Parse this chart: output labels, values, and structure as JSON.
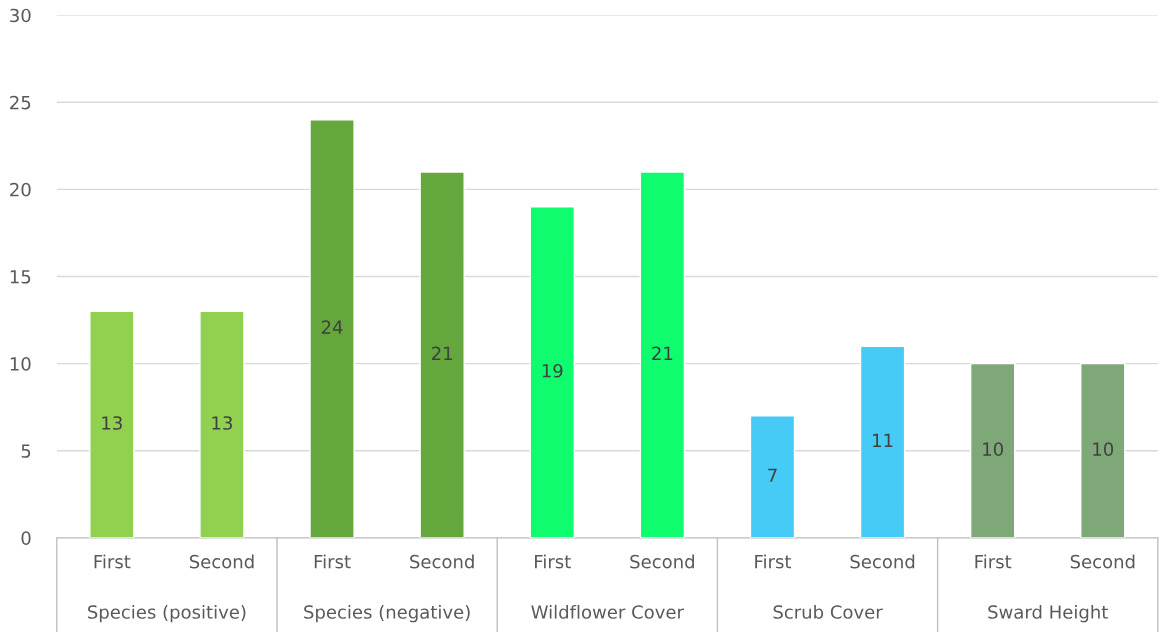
{
  "chart_data": {
    "type": "bar",
    "categories": [
      "First",
      "Second",
      "First",
      "Second",
      "First",
      "Second",
      "First",
      "Second",
      "First",
      "Second"
    ],
    "values": [
      13,
      13,
      24,
      21,
      19,
      21,
      7,
      11,
      10,
      10
    ],
    "colors": [
      "#92d050",
      "#92d050",
      "#64a73d",
      "#64a73d",
      "#0ffc6e",
      "#0ffc6e",
      "#45cbf6",
      "#45cbf6",
      "#7fa878",
      "#7fa878"
    ],
    "annotations": [
      "Species (positive)",
      "Species (negative)",
      "Wildflower Cover",
      "Scrub Cover",
      "Sward Height"
    ],
    "ylim": [
      0,
      30
    ],
    "yticks": [
      0,
      5,
      10,
      15,
      20,
      25,
      30
    ],
    "grid": "y",
    "data_labels": true,
    "legend": false
  }
}
